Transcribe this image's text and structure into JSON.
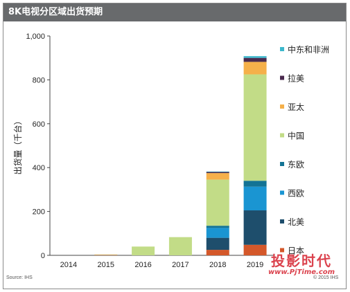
{
  "title": "8K电视分区域出货预期",
  "source": "Source: IHS",
  "copyright": "© 2015 IHS",
  "watermark": {
    "cn": "投影时代",
    "url": "www.PjTime.com"
  },
  "chart_data": {
    "type": "bar",
    "stacked": true,
    "title": "8K电视分区域出货预期",
    "ylabel": "出货量（千台）",
    "xlabel": "",
    "ylim": [
      0,
      1000
    ],
    "yticks": [
      0,
      200,
      400,
      600,
      800,
      1000
    ],
    "ytick_labels": [
      "0",
      "200",
      "400",
      "600",
      "800",
      "1,000"
    ],
    "grid": false,
    "legend_position": "right",
    "categories": [
      "2014",
      "2015",
      "2016",
      "2017",
      "2018",
      "2019"
    ],
    "series": [
      {
        "name": "日本",
        "color": "#d4582a",
        "values": [
          0,
          2,
          0,
          0,
          25,
          48
        ]
      },
      {
        "name": "北美",
        "color": "#1e4e6c",
        "values": [
          0,
          0,
          0,
          0,
          55,
          157
        ]
      },
      {
        "name": "西欧",
        "color": "#1a95d2",
        "values": [
          0,
          0,
          0,
          0,
          45,
          108
        ]
      },
      {
        "name": "东欧",
        "color": "#137394",
        "values": [
          0,
          0,
          0,
          0,
          10,
          27
        ]
      },
      {
        "name": "中国",
        "color": "#c2dc87",
        "values": [
          0,
          2,
          40,
          83,
          210,
          485
        ]
      },
      {
        "name": "亚太",
        "color": "#f5b04a",
        "values": [
          0,
          0,
          0,
          0,
          30,
          57
        ]
      },
      {
        "name": "拉美",
        "color": "#4a2a4e",
        "values": [
          0,
          0,
          0,
          0,
          5,
          18
        ]
      },
      {
        "name": "中东和非洲",
        "color": "#3cb8cc",
        "values": [
          0,
          0,
          0,
          0,
          2,
          8
        ]
      }
    ]
  }
}
